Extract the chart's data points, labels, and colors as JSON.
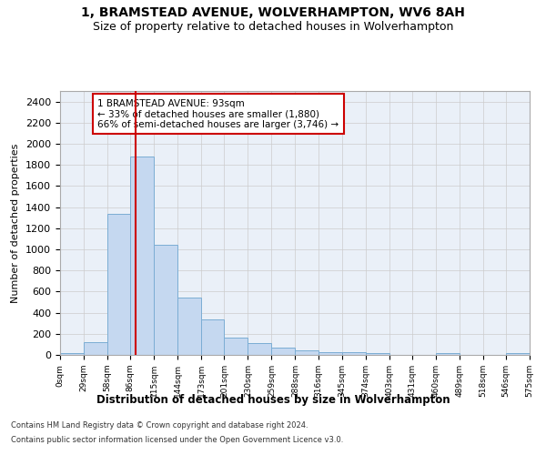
{
  "title1": "1, BRAMSTEAD AVENUE, WOLVERHAMPTON, WV6 8AH",
  "title2": "Size of property relative to detached houses in Wolverhampton",
  "xlabel": "Distribution of detached houses by size in Wolverhampton",
  "ylabel": "Number of detached properties",
  "bar_color": "#c5d8f0",
  "bar_edge_color": "#7badd4",
  "grid_color": "#cccccc",
  "bg_color": "#eaf0f8",
  "red_line_color": "#cc0000",
  "annotation_line1": "1 BRAMSTEAD AVENUE: 93sqm",
  "annotation_line2": "← 33% of detached houses are smaller (1,880)",
  "annotation_line3": "66% of semi-detached houses are larger (3,746) →",
  "annotation_box_color": "#cc0000",
  "property_size": 93,
  "bin_edges": [
    0,
    29,
    58,
    86,
    115,
    144,
    173,
    201,
    230,
    259,
    288,
    316,
    345,
    374,
    403,
    431,
    460,
    489,
    518,
    546,
    575
  ],
  "bar_heights": [
    20,
    125,
    1340,
    1880,
    1040,
    540,
    335,
    160,
    110,
    65,
    40,
    30,
    25,
    20,
    0,
    0,
    20,
    0,
    0,
    20
  ],
  "ylim": [
    0,
    2500
  ],
  "yticks": [
    0,
    200,
    400,
    600,
    800,
    1000,
    1200,
    1400,
    1600,
    1800,
    2000,
    2200,
    2400
  ],
  "xtick_labels": [
    "0sqm",
    "29sqm",
    "58sqm",
    "86sqm",
    "115sqm",
    "144sqm",
    "173sqm",
    "201sqm",
    "230sqm",
    "259sqm",
    "288sqm",
    "316sqm",
    "345sqm",
    "374sqm",
    "403sqm",
    "431sqm",
    "460sqm",
    "489sqm",
    "518sqm",
    "546sqm",
    "575sqm"
  ],
  "footnote1": "Contains HM Land Registry data © Crown copyright and database right 2024.",
  "footnote2": "Contains public sector information licensed under the Open Government Licence v3.0."
}
